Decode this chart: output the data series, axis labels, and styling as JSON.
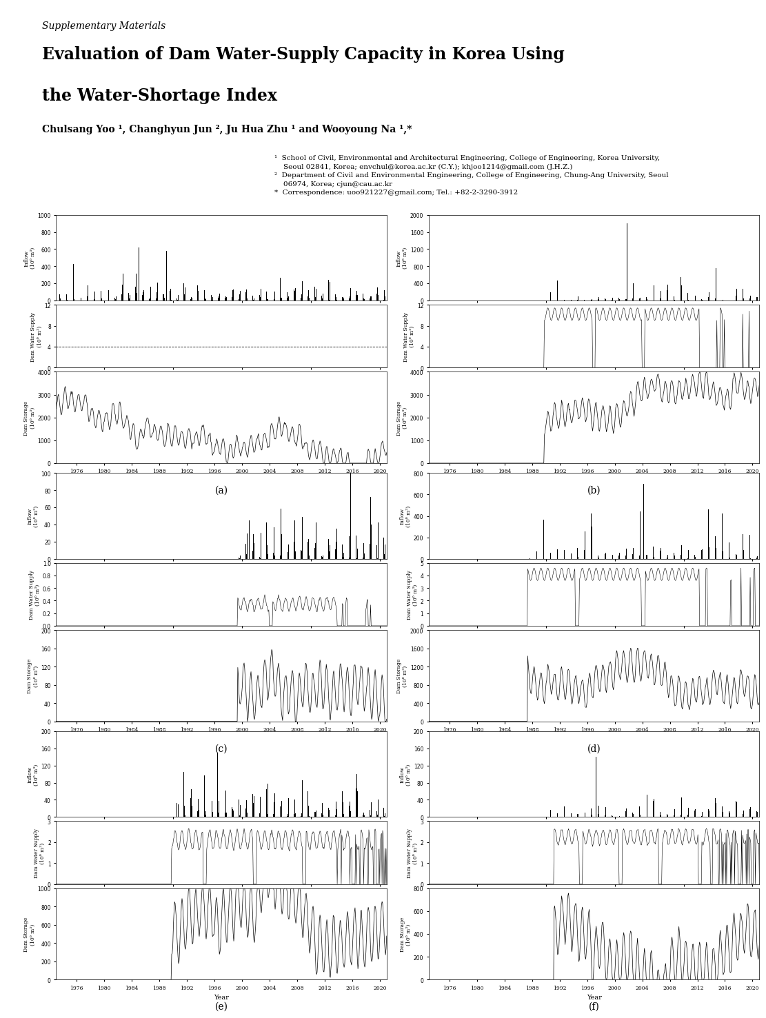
{
  "title_supplementary": "Supplementary Materials",
  "title_main_line1": "Evaluation of Dam Water-Supply Capacity in Korea Using",
  "title_main_line2": "the Water-Shortage Index",
  "authors": "Chulsang Yoo ¹, Changhyun Jun ², Ju Hua Zhu ¹ and Wooyoung Na ¹,*",
  "affil1": "¹  School of Civil, Environmental and Architectural Engineering, College of Engineering, Korea University,\n    Seoul 02841, Korea; envchul@korea.ac.kr (C.Y.); khjoo1214@gmail.com (J.H.Z.)",
  "affil2": "²  Department of Civil and Environmental Engineering, College of Engineering, Chung-Ang University, Seoul\n    06974, Korea; cjun@cau.ac.kr",
  "affil3": "*  Correspondence: uoo921227@gmail.com; Tel.: +82-2-3290-3912",
  "panel_labels": [
    "(a)",
    "(b)",
    "(c)",
    "(d)",
    "(e)",
    "(f)"
  ],
  "panels": [
    {
      "label": "(a)",
      "inflow_ylim": [
        0,
        1000
      ],
      "inflow_yticks": [
        0,
        200,
        400,
        600,
        800,
        1000
      ],
      "supply_ylim": [
        0,
        12
      ],
      "supply_yticks": [
        0,
        4,
        8,
        12
      ],
      "supply_hline": 4.0,
      "supply_hline_style": "dashed",
      "storage_ylim": [
        0,
        4000
      ],
      "storage_yticks": [
        0,
        1000,
        2000,
        3000,
        4000
      ],
      "xstart": 1973,
      "xend": 2021,
      "xticks": [
        1976,
        1980,
        1984,
        1988,
        1992,
        1996,
        2000,
        2004,
        2008,
        2012,
        2016,
        2020
      ],
      "inflow_type": "bar_sparse_large",
      "supply_type": "flat_line",
      "storage_type": "wavy_decreasing"
    },
    {
      "label": "(b)",
      "inflow_ylim": [
        0,
        2000
      ],
      "inflow_yticks": [
        0,
        400,
        800,
        1200,
        1600,
        2000
      ],
      "supply_ylim": [
        0,
        12
      ],
      "supply_yticks": [
        0,
        4,
        8,
        12
      ],
      "supply_hline": null,
      "supply_hline_style": null,
      "storage_ylim": [
        0,
        4000
      ],
      "storage_yticks": [
        0,
        1000,
        2000,
        3000,
        4000
      ],
      "xstart": 1973,
      "xend": 2021,
      "xticks": [
        1976,
        1980,
        1984,
        1988,
        1992,
        1996,
        2000,
        2004,
        2008,
        2012,
        2016,
        2020
      ],
      "inflow_type": "bar_sparse_large_b",
      "supply_type": "oscillating_drops",
      "storage_type": "wavy_partial"
    },
    {
      "label": "(c)",
      "inflow_ylim": [
        0,
        100
      ],
      "inflow_yticks": [
        0,
        20,
        40,
        60,
        80,
        100
      ],
      "supply_ylim": [
        0,
        1
      ],
      "supply_yticks": [
        0,
        0.2,
        0.4,
        0.6,
        0.8,
        1.0
      ],
      "supply_hline": null,
      "supply_hline_style": null,
      "storage_ylim": [
        0,
        200
      ],
      "storage_yticks": [
        0,
        40,
        80,
        120,
        160,
        200
      ],
      "xstart": 1973,
      "xend": 2021,
      "xticks": [
        1976,
        1980,
        1984,
        1988,
        1992,
        1996,
        2000,
        2004,
        2008,
        2012,
        2016,
        2020
      ],
      "inflow_type": "bar_late_start",
      "supply_type": "oscillating_partial",
      "storage_type": "wavy_late"
    },
    {
      "label": "(d)",
      "inflow_ylim": [
        0,
        800
      ],
      "inflow_yticks": [
        0,
        200,
        400,
        600,
        800
      ],
      "supply_ylim": [
        0,
        5
      ],
      "supply_yticks": [
        0,
        1,
        2,
        3,
        4,
        5
      ],
      "supply_hline": null,
      "supply_hline_style": null,
      "storage_ylim": [
        0,
        2000
      ],
      "storage_yticks": [
        0,
        400,
        800,
        1200,
        1600,
        2000
      ],
      "xstart": 1973,
      "xend": 2021,
      "xticks": [
        1976,
        1980,
        1984,
        1988,
        1992,
        1996,
        2000,
        2004,
        2008,
        2012,
        2016,
        2020
      ],
      "inflow_type": "bar_medium_partial",
      "supply_type": "oscillating_medium",
      "storage_type": "wavy_medium"
    },
    {
      "label": "(e)",
      "inflow_ylim": [
        0,
        200
      ],
      "inflow_yticks": [
        0,
        40,
        80,
        120,
        160,
        200
      ],
      "supply_ylim": [
        0,
        3
      ],
      "supply_yticks": [
        0,
        1,
        2,
        3
      ],
      "supply_hline": null,
      "supply_hline_style": null,
      "storage_ylim": [
        0,
        1000
      ],
      "storage_yticks": [
        0,
        200,
        400,
        600,
        800,
        1000
      ],
      "xstart": 1973,
      "xend": 2021,
      "xticks": [
        1976,
        1980,
        1984,
        1988,
        1992,
        1996,
        2000,
        2004,
        2008,
        2012,
        2016,
        2020
      ],
      "inflow_type": "bar_medium_e",
      "supply_type": "oscillating_e",
      "storage_type": "wavy_e"
    },
    {
      "label": "(f)",
      "inflow_ylim": [
        0,
        200
      ],
      "inflow_yticks": [
        0,
        40,
        80,
        120,
        160,
        200
      ],
      "supply_ylim": [
        0,
        3
      ],
      "supply_yticks": [
        0,
        1,
        2,
        3
      ],
      "supply_hline": null,
      "supply_hline_style": null,
      "storage_ylim": [
        0,
        800
      ],
      "storage_yticks": [
        0,
        200,
        400,
        600,
        800
      ],
      "xstart": 1973,
      "xend": 2021,
      "xticks": [
        1976,
        1980,
        1984,
        1988,
        1992,
        1996,
        2000,
        2004,
        2008,
        2012,
        2016,
        2020
      ],
      "inflow_type": "bar_medium_f",
      "supply_type": "oscillating_f",
      "storage_type": "wavy_f"
    }
  ],
  "ylabel_inflow": "Inflow\n(10⁶ m³)",
  "ylabel_supply": "Dam Water Supply\n(10⁶ m³)",
  "ylabel_storage": "Dam Storage\n(10⁶ m³)",
  "xlabel": "Year",
  "background_color": "#ffffff",
  "line_color": "#000000",
  "bar_color": "#000000"
}
